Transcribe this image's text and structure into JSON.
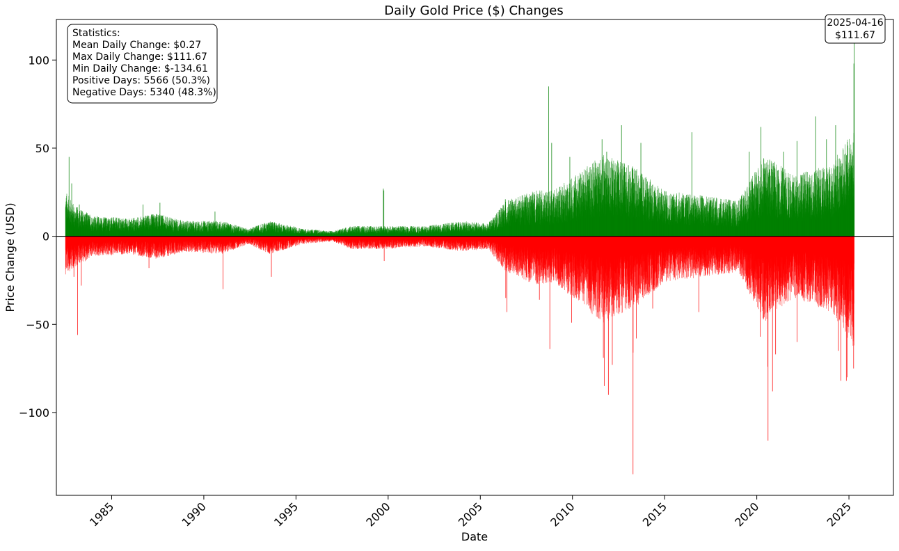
{
  "chart_data": {
    "type": "bar",
    "title": "Daily Gold Price ($) Changes",
    "xlabel": "Date",
    "ylabel": "Price Change (USD)",
    "xlim": [
      "1982-01-01",
      "2027-06-01"
    ],
    "ylim": [
      -147,
      123
    ],
    "x_ticks": [
      "1985",
      "1990",
      "1995",
      "2000",
      "2005",
      "2010",
      "2015",
      "2020",
      "2025"
    ],
    "y_ticks": [
      100,
      50,
      0,
      -50,
      -100
    ],
    "y_tick_labels": [
      "100",
      "50",
      "0",
      "−50",
      "−100"
    ],
    "positive_color": "#008000",
    "negative_color": "#ff0000",
    "zero_line": true,
    "grid": false,
    "x_range": [
      "1982-07-01",
      "2025-04-16"
    ],
    "stats": {
      "heading": "Statistics:",
      "lines": [
        "Mean Daily Change: $0.27",
        "Max Daily Change: $111.67",
        "Min Daily Change: $-134.61",
        "Positive Days: 5566 (50.3%)",
        "Negative Days: 5340 (48.3%)"
      ],
      "placement": "top-left"
    },
    "annotation": {
      "date": "2025-04-16",
      "value": 111.67,
      "line1": "2025-04-16",
      "line2": "$111.67"
    },
    "envelope": [
      {
        "x": "1982-07-01",
        "hi": 18,
        "lo": -15
      },
      {
        "x": "1983-01-01",
        "hi": 12,
        "lo": -12
      },
      {
        "x": "1984-01-01",
        "hi": 8,
        "lo": -8
      },
      {
        "x": "1986-01-01",
        "hi": 7,
        "lo": -7
      },
      {
        "x": "1987-06-01",
        "hi": 9,
        "lo": -9
      },
      {
        "x": "1989-01-01",
        "hi": 6,
        "lo": -6
      },
      {
        "x": "1991-01-01",
        "hi": 6,
        "lo": -7
      },
      {
        "x": "1992-06-01",
        "hi": 3,
        "lo": -3
      },
      {
        "x": "1993-08-01",
        "hi": 6,
        "lo": -7
      },
      {
        "x": "1995-06-01",
        "hi": 3,
        "lo": -3
      },
      {
        "x": "1997-01-01",
        "hi": 2,
        "lo": -2
      },
      {
        "x": "1998-01-01",
        "hi": 4,
        "lo": -5
      },
      {
        "x": "2000-01-01",
        "hi": 4,
        "lo": -5
      },
      {
        "x": "2002-01-01",
        "hi": 4,
        "lo": -4
      },
      {
        "x": "2004-01-01",
        "hi": 6,
        "lo": -6
      },
      {
        "x": "2005-06-01",
        "hi": 5,
        "lo": -5
      },
      {
        "x": "2006-06-01",
        "hi": 14,
        "lo": -14
      },
      {
        "x": "2008-01-01",
        "hi": 18,
        "lo": -19
      },
      {
        "x": "2009-01-01",
        "hi": 18,
        "lo": -18
      },
      {
        "x": "2011-09-01",
        "hi": 32,
        "lo": -34
      },
      {
        "x": "2013-06-01",
        "hi": 27,
        "lo": -28
      },
      {
        "x": "2015-01-01",
        "hi": 18,
        "lo": -18
      },
      {
        "x": "2017-01-01",
        "hi": 16,
        "lo": -16
      },
      {
        "x": "2019-01-01",
        "hi": 14,
        "lo": -14
      },
      {
        "x": "2020-06-01",
        "hi": 32,
        "lo": -34
      },
      {
        "x": "2022-01-01",
        "hi": 24,
        "lo": -24
      },
      {
        "x": "2024-01-01",
        "hi": 28,
        "lo": -30
      },
      {
        "x": "2025-04-16",
        "hi": 42,
        "lo": -44
      }
    ],
    "spikes": [
      {
        "x": "1982-09-10",
        "y": 45
      },
      {
        "x": "1982-11-01",
        "y": 30
      },
      {
        "x": "1982-12-15",
        "y": -23
      },
      {
        "x": "1983-02-25",
        "y": -56
      },
      {
        "x": "1983-05-10",
        "y": -28
      },
      {
        "x": "1983-04-01",
        "y": 18
      },
      {
        "x": "1986-09-15",
        "y": 18
      },
      {
        "x": "1987-01-10",
        "y": -18
      },
      {
        "x": "1987-08-15",
        "y": 19
      },
      {
        "x": "1991-01-17",
        "y": -30
      },
      {
        "x": "1993-09-01",
        "y": -23
      },
      {
        "x": "1990-08-10",
        "y": 14
      },
      {
        "x": "1999-09-28",
        "y": 27
      },
      {
        "x": "1999-10-08",
        "y": 26
      },
      {
        "x": "1999-10-15",
        "y": -14
      },
      {
        "x": "2006-05-12",
        "y": 21
      },
      {
        "x": "2006-06-13",
        "y": -43
      },
      {
        "x": "2006-05-20",
        "y": -35
      },
      {
        "x": "2008-03-17",
        "y": -36
      },
      {
        "x": "2008-09-17",
        "y": 85
      },
      {
        "x": "2008-10-10",
        "y": -64
      },
      {
        "x": "2008-11-15",
        "y": 53
      },
      {
        "x": "2009-11-10",
        "y": 45
      },
      {
        "x": "2009-12-15",
        "y": -49
      },
      {
        "x": "2010-05-10",
        "y": 32
      },
      {
        "x": "2011-08-10",
        "y": 55
      },
      {
        "x": "2011-09-23",
        "y": -85
      },
      {
        "x": "2011-09-05",
        "y": -69
      },
      {
        "x": "2011-11-10",
        "y": 48
      },
      {
        "x": "2011-12-14",
        "y": -90
      },
      {
        "x": "2012-02-29",
        "y": -73
      },
      {
        "x": "2012-08-30",
        "y": 63
      },
      {
        "x": "2013-04-15",
        "y": -135
      },
      {
        "x": "2013-04-16",
        "y": -66
      },
      {
        "x": "2013-06-20",
        "y": -58
      },
      {
        "x": "2013-09-18",
        "y": 53
      },
      {
        "x": "2014-05-10",
        "y": -41
      },
      {
        "x": "2016-06-24",
        "y": 59
      },
      {
        "x": "2016-11-09",
        "y": -43
      },
      {
        "x": "2019-08-05",
        "y": 48
      },
      {
        "x": "2020-03-24",
        "y": 62
      },
      {
        "x": "2020-03-10",
        "y": -57
      },
      {
        "x": "2020-08-11",
        "y": -116
      },
      {
        "x": "2020-08-07",
        "y": -74
      },
      {
        "x": "2020-11-09",
        "y": -88
      },
      {
        "x": "2021-01-08",
        "y": -67
      },
      {
        "x": "2021-06-17",
        "y": 48
      },
      {
        "x": "2022-03-08",
        "y": 54
      },
      {
        "x": "2022-03-09",
        "y": -60
      },
      {
        "x": "2023-03-13",
        "y": 68
      },
      {
        "x": "2023-10-13",
        "y": 55
      },
      {
        "x": "2024-01-10",
        "y": -40
      },
      {
        "x": "2024-04-12",
        "y": 63
      },
      {
        "x": "2024-06-07",
        "y": -65
      },
      {
        "x": "2024-07-26",
        "y": -82
      },
      {
        "x": "2024-11-11",
        "y": -82
      },
      {
        "x": "2024-11-25",
        "y": -80
      },
      {
        "x": "2025-04-03",
        "y": -75
      },
      {
        "x": "2025-04-09",
        "y": 98
      },
      {
        "x": "2025-04-16",
        "y": 111.67
      }
    ]
  }
}
